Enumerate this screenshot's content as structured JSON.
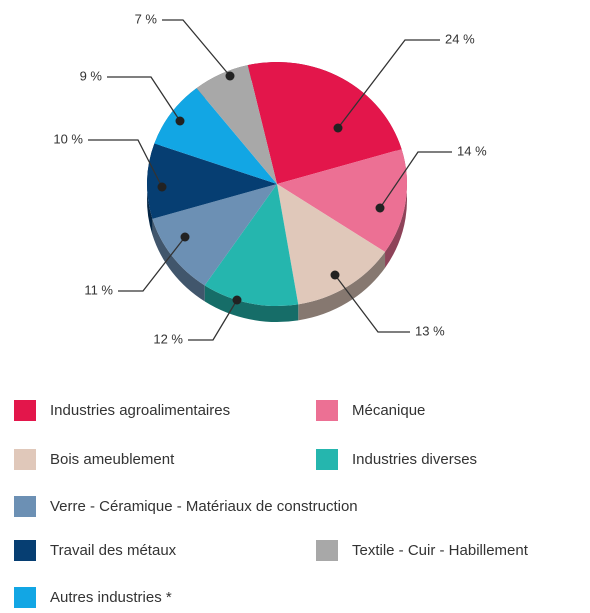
{
  "chart_data": {
    "type": "pie",
    "categories": [
      "Industries agroalimentaires",
      "Mécanique",
      "Bois ameublement",
      "Industries diverses",
      "Verre - Céramique - Matériaux de construction",
      "Travail des métaux",
      "Autres industries *",
      "Textile - Cuir - Habillement"
    ],
    "values": [
      24,
      14,
      13,
      12,
      11,
      10,
      9,
      7
    ],
    "value_labels": [
      "24 %",
      "14 %",
      "13 %",
      "12 %",
      "11 %",
      "10 %",
      "9 %",
      "7 %"
    ],
    "colors": [
      "#e3164b",
      "#ec7094",
      "#e0c8ba",
      "#25b6ae",
      "#6c90b4",
      "#063e72",
      "#12a6e4",
      "#a8a8a8"
    ],
    "legend": "bottom"
  }
}
